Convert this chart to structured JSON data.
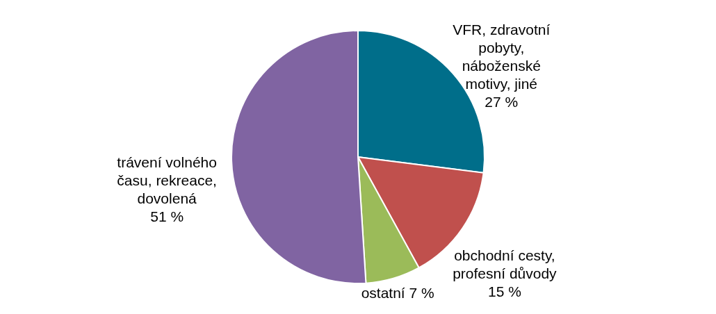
{
  "chart_data": {
    "type": "pie",
    "categories": [
      "VFR, zdravotní pobyty, náboženské motivy, jiné",
      "obchodní cesty, profesní důvody",
      "ostatní",
      "trávení volného času, rekreace, dovolená"
    ],
    "values": [
      27,
      15,
      7,
      51
    ],
    "colors": [
      "#006e8a",
      "#c0504d",
      "#9bbb59",
      "#8064a2"
    ],
    "value_labels": [
      "27 %",
      "15 %",
      "7 %",
      "51 %"
    ]
  }
}
